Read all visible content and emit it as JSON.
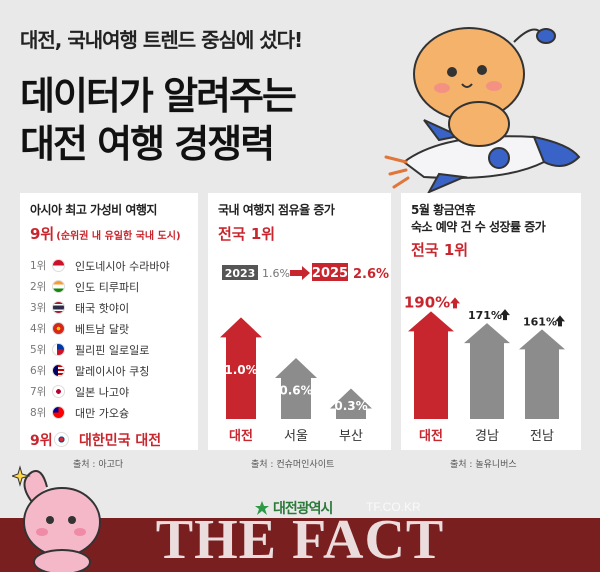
{
  "header": {
    "subtitle": "대전, 국내여행 트렌드 중심에 섰다!",
    "title_line1": "데이터가 알려주는",
    "title_line2": "대전 여행 경쟁력"
  },
  "panel1": {
    "title": "아시아 최고 가성비 여행지",
    "rank": "9위",
    "rank_note": "(순위권 내 유일한 국내 도시)",
    "list": [
      {
        "rank": "1위",
        "city": "인도네시아 수라바야",
        "flag": "indonesia-flag-icon"
      },
      {
        "rank": "2위",
        "city": "인도 티루파티",
        "flag": "india-flag-icon"
      },
      {
        "rank": "3위",
        "city": "태국 핫야이",
        "flag": "thailand-flag-icon"
      },
      {
        "rank": "4위",
        "city": "베트남 달랏",
        "flag": "vietnam-flag-icon"
      },
      {
        "rank": "5위",
        "city": "필리핀 일로일로",
        "flag": "philippines-flag-icon"
      },
      {
        "rank": "6위",
        "city": "말레이시아 쿠칭",
        "flag": "malaysia-flag-icon"
      },
      {
        "rank": "7위",
        "city": "일본 나고야",
        "flag": "japan-flag-icon"
      },
      {
        "rank": "8위",
        "city": "대만 가오슝",
        "flag": "taiwan-flag-icon"
      }
    ],
    "highlight": {
      "rank": "9위",
      "city": "대한민국 대전",
      "flag": "korea-flag-icon"
    },
    "source": "출처 : 아고다"
  },
  "chart_data": [
    {
      "type": "bar",
      "title": "국내 여행지 점유율 증가",
      "subtitle": "전국 1위",
      "annotation": {
        "from_year": "2023",
        "from_value": "1.6%",
        "to_year": "2025",
        "to_value": "2.6%"
      },
      "categories": [
        "대전",
        "서울",
        "부산"
      ],
      "values": [
        1.0,
        0.6,
        0.3
      ],
      "value_labels": [
        "1.0%",
        "0.6%",
        "0.3%"
      ],
      "ylim": [
        0,
        1.2
      ],
      "colors": [
        "#c8262e",
        "#8c8c8c",
        "#8c8c8c"
      ],
      "source": "출처 : 컨슈머인사이트"
    },
    {
      "type": "bar",
      "title": "5월 황금연휴",
      "title_line2": "숙소 예약 건 수 성장률 증가",
      "subtitle": "전국 1위",
      "categories": [
        "대전",
        "경남",
        "전남"
      ],
      "values": [
        190,
        171,
        161
      ],
      "value_labels": [
        "190%",
        "171%",
        "161%"
      ],
      "ylim": [
        0,
        210
      ],
      "colors": [
        "#c8262e",
        "#8c8c8c",
        "#8c8c8c"
      ],
      "source": "출처 : 놀유니버스"
    }
  ],
  "footer": {
    "logo_text": "대전광역시",
    "watermark_site": "TF.CO.KR",
    "watermark_brand": "THE FACT"
  },
  "colors": {
    "accent_red": "#c8262e",
    "bar_gray": "#8c8c8c",
    "background": "#e9e9e9",
    "band": "#7a1f1f"
  }
}
